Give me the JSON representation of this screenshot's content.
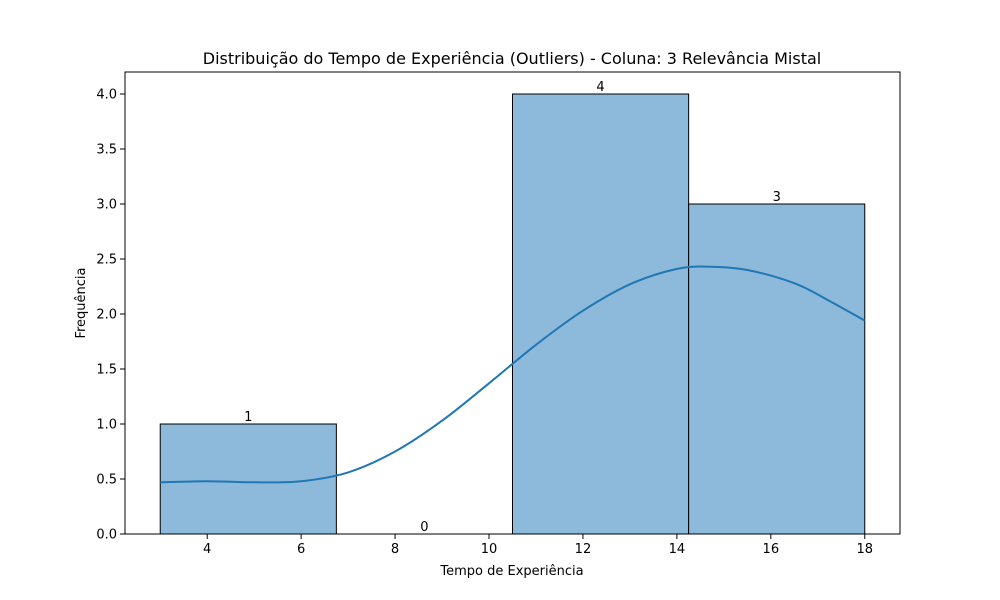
{
  "chart_data": {
    "type": "bar",
    "title": "Distribuição do Tempo de Experiência (Outliers) - Coluna: 3 Relevância Mistal",
    "xlabel": "Tempo de Experiência",
    "ylabel": "Frequência",
    "xlim": [
      2.25,
      18.75
    ],
    "ylim": [
      0,
      4.2
    ],
    "xticks": [
      4,
      6,
      8,
      10,
      12,
      14,
      16,
      18
    ],
    "yticks": [
      0.0,
      0.5,
      1.0,
      1.5,
      2.0,
      2.5,
      3.0,
      3.5,
      4.0
    ],
    "xtick_labels": [
      "4",
      "6",
      "8",
      "10",
      "12",
      "14",
      "16",
      "18"
    ],
    "ytick_labels": [
      "0.0",
      "0.5",
      "1.0",
      "1.5",
      "2.0",
      "2.5",
      "3.0",
      "3.5",
      "4.0"
    ],
    "bins": [
      {
        "start": 3.0,
        "end": 6.75,
        "count": 1,
        "label": "1"
      },
      {
        "start": 6.75,
        "end": 10.5,
        "count": 0,
        "label": "0"
      },
      {
        "start": 10.5,
        "end": 14.25,
        "count": 4,
        "label": "4"
      },
      {
        "start": 14.25,
        "end": 18.0,
        "count": 3,
        "label": "3"
      }
    ],
    "kde": {
      "x": [
        3.0,
        4.0,
        5.0,
        6.0,
        7.0,
        8.0,
        9.0,
        10.0,
        11.0,
        12.0,
        13.0,
        14.0,
        14.7,
        15.5,
        16.5,
        17.2,
        18.0
      ],
      "y": [
        0.47,
        0.48,
        0.47,
        0.48,
        0.56,
        0.75,
        1.03,
        1.37,
        1.72,
        2.03,
        2.27,
        2.41,
        2.43,
        2.4,
        2.28,
        2.13,
        1.94
      ]
    },
    "grid": false,
    "legend": "none",
    "colors": {
      "bar_fill": "#8db9da",
      "bar_edge": "#000000",
      "kde_line": "#1f77b4"
    }
  }
}
